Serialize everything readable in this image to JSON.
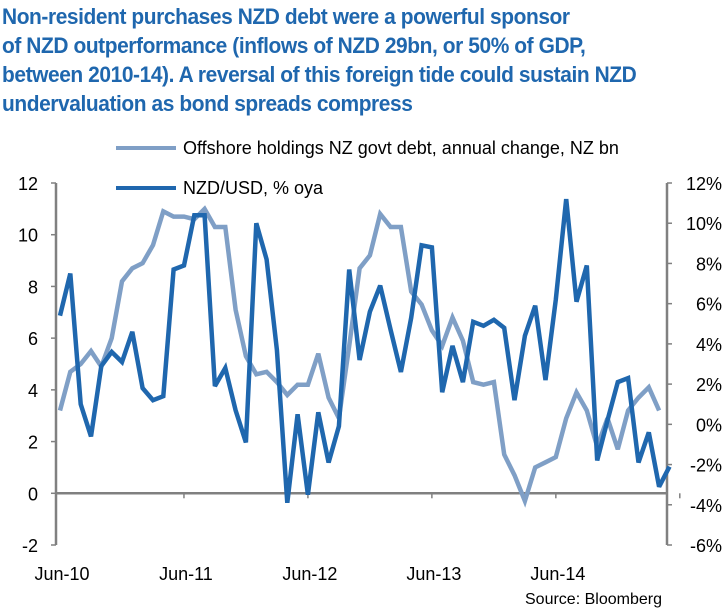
{
  "title": {
    "lines": [
      "Non-resident purchases NZD debt were a powerful sponsor",
      "of NZD outperformance (inflows of NZD 29bn, or 50% of GDP,",
      "between 2010-14). A reversal of this foreign tide could sustain NZD",
      "undervaluation as bond spreads compress"
    ],
    "color": "#1f67ae"
  },
  "chart_data": {
    "type": "line",
    "title": "Non-resident purchases NZD debt were a powerful sponsor of NZD outperformance (inflows of NZD 29bn, or 50% of GDP, between 2010-14). A reversal of this foreign tide could sustain NZD undervaluation as bond spreads compress",
    "xlabel": "",
    "x_tick_labels": [
      "Jun-10",
      "Jun-11",
      "Jun-12",
      "Jun-13",
      "Jun-14"
    ],
    "x_start": "Jun-10",
    "x_frequency": "monthly",
    "left_axis": {
      "ylim": [
        -2,
        12
      ],
      "ticks": [
        -2,
        0,
        2,
        4,
        6,
        8,
        10,
        12
      ],
      "tick_labels": [
        "-2",
        "0",
        "2",
        "4",
        "6",
        "8",
        "10",
        "12"
      ]
    },
    "right_axis": {
      "ylim": [
        -6,
        12
      ],
      "ticks": [
        -6,
        -4,
        -2,
        0,
        2,
        4,
        6,
        8,
        10,
        12
      ],
      "tick_labels": [
        "-6%",
        "-4%",
        "-2%",
        "0%",
        "2%",
        "4%",
        "6%",
        "8%",
        "10%",
        "12%"
      ]
    },
    "grid": false,
    "legend_position": "top",
    "series": [
      {
        "name": "Offshore holdings NZ govt debt, annual change, NZ bn",
        "axis": "left",
        "color": "#7f9fc6",
        "values": [
          3.2,
          4.7,
          5.0,
          5.5,
          4.9,
          6.0,
          8.2,
          8.7,
          8.9,
          9.6,
          10.9,
          10.7,
          10.7,
          10.6,
          11.0,
          10.3,
          10.3,
          7.1,
          5.3,
          4.6,
          4.7,
          4.3,
          3.8,
          4.2,
          4.2,
          5.4,
          3.7,
          2.9,
          5.7,
          8.7,
          9.2,
          10.8,
          10.3,
          10.3,
          7.8,
          7.3,
          6.3,
          5.7,
          6.8,
          5.9,
          4.3,
          4.2,
          4.3,
          1.5,
          0.7,
          -0.3,
          1.0,
          1.2,
          1.4,
          2.9,
          3.9,
          3.2,
          1.8,
          2.9,
          1.7,
          3.2,
          3.7,
          4.1,
          3.2
        ]
      },
      {
        "name": "NZD/USD, % oya",
        "axis": "right",
        "color": "#1f67ae",
        "values": [
          5.4,
          7.5,
          1.0,
          -0.6,
          2.9,
          3.6,
          3.1,
          4.6,
          1.8,
          1.2,
          1.4,
          7.7,
          7.9,
          10.4,
          10.4,
          1.9,
          2.8,
          0.7,
          -0.9,
          10.0,
          8.2,
          3.7,
          -3.9,
          0.5,
          -3.5,
          0.6,
          -1.9,
          -0.1,
          7.7,
          3.2,
          5.6,
          6.9,
          4.7,
          2.6,
          5.3,
          8.9,
          8.8,
          1.6,
          3.9,
          2.1,
          5.1,
          4.9,
          5.2,
          4.8,
          1.2,
          4.4,
          5.9,
          2.2,
          6.2,
          11.2,
          6.1,
          7.9,
          -1.8,
          0.2,
          2.1,
          2.3,
          -1.9,
          -0.4,
          -3.1,
          -2.1
        ]
      }
    ],
    "source": "Source: Bloomberg"
  },
  "colors": {
    "axis": "#808080",
    "offshore_series": "#7f9fc6",
    "nzdusd_series": "#1f67ae"
  }
}
